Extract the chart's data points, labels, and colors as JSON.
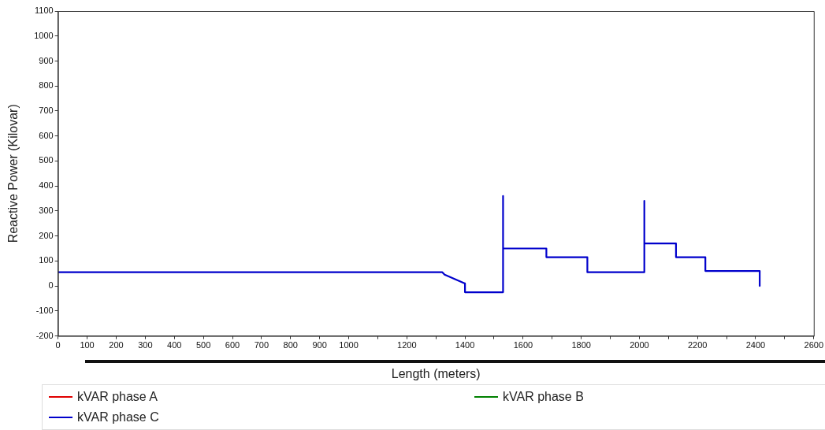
{
  "chart_data": {
    "type": "line",
    "xlabel": "Length (meters)",
    "ylabel": "Reactive Power (Kilovar)",
    "xlim": [
      0,
      2600
    ],
    "xticks": [
      0,
      100,
      200,
      300,
      400,
      500,
      600,
      700,
      800,
      900,
      1000,
      {
        "value": 1100,
        "label": null
      },
      1200,
      {
        "value": 1300,
        "label": null
      },
      1400,
      {
        "value": 1500,
        "label": null
      },
      1600,
      {
        "value": 1700,
        "label": null
      },
      1800,
      {
        "value": 1900,
        "label": null
      },
      2000,
      {
        "value": 2100,
        "label": null
      },
      2200,
      {
        "value": 2300,
        "label": null
      },
      2400,
      {
        "value": 2500,
        "label": null
      },
      2600
    ],
    "ylim": [
      -200,
      1100
    ],
    "yticks": [
      -200,
      -100,
      0,
      100,
      200,
      300,
      400,
      500,
      600,
      700,
      800,
      900,
      1000,
      1100
    ],
    "grid": false,
    "legend": "bottom",
    "marker": "none",
    "line_style": "solid",
    "series": [
      {
        "name": "kVAR phase A",
        "color": "#e00000"
      },
      {
        "name": "kVAR phase B",
        "color": "#008000"
      },
      {
        "name": "kVAR phase C",
        "color": "#0000cc",
        "x": [
          0,
          1322,
          1330,
          1400,
          1400,
          1531,
          1531,
          1531,
          1680,
          1680,
          1821,
          1821,
          2017,
          2017,
          2017,
          2126,
          2126,
          2227,
          2227,
          2414,
          2414
        ],
        "values": [
          55,
          55,
          45,
          10,
          -25,
          -25,
          360,
          150,
          150,
          115,
          115,
          55,
          55,
          340,
          170,
          170,
          115,
          115,
          60,
          60,
          0
        ]
      }
    ]
  }
}
